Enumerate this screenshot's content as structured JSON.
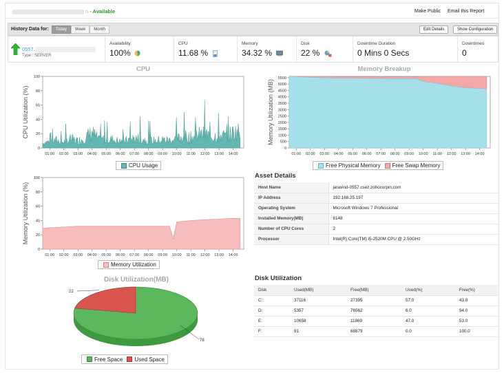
{
  "header": {
    "monitor_suffix": "n",
    "status": " - Available",
    "make_public": "Make Public",
    "email_report": "Email this Report"
  },
  "history": {
    "label": "History Data for:",
    "tabs": [
      "Today",
      "Week",
      "Month"
    ],
    "active_tab": "Today",
    "edit_details": "Edit Details",
    "show_configuration": "Show Configuration"
  },
  "monitor": {
    "name": "0557.",
    "type": "Type : SERVER"
  },
  "summary": {
    "availability": {
      "label": "Availability",
      "value": "100%"
    },
    "cpu": {
      "label": "CPU",
      "value": "11.68 %"
    },
    "memory": {
      "label": "Memory",
      "value": "34.32 %"
    },
    "disk": {
      "label": "Disk",
      "value": "22 %"
    },
    "downtime_duration": {
      "label": "Downtime Duration",
      "value": "0 Mins 0 Secs"
    },
    "downtimes": {
      "label": "Downtimes",
      "value": "0"
    }
  },
  "colors": {
    "cpu_area": "#62b8b0",
    "memory_util_area": "#f7bcbc",
    "free_physical": "#a5e0ea",
    "free_swap": "#f3a7a7",
    "free_space": "#5cb85c",
    "used_space": "#d9534f",
    "available_green": "#2c9a2c"
  },
  "cpu_chart": {
    "title": "CPU",
    "ylabel": "CPU Utilization (%)",
    "ylim": [
      0,
      100
    ],
    "yticks": [
      0,
      20,
      40,
      60,
      80,
      100
    ],
    "xticks": [
      "01:00",
      "02:00",
      "03:00",
      "04:00",
      "05:00",
      "06:00",
      "07:00",
      "08:00",
      "09:00",
      "10:00",
      "11:00",
      "12:00",
      "13:00",
      "14:00"
    ],
    "legend": "CPU Usage"
  },
  "memory_breakup_chart": {
    "title": "Memory Breakup",
    "ylabel": "Memory Utilization (MB)",
    "ylim": [
      0,
      5600
    ],
    "yticks": [
      0,
      500,
      1000,
      1500,
      2000,
      2500,
      3000,
      3500,
      4000,
      4500,
      5000,
      5500
    ],
    "xticks": [
      "01:00",
      "02:00",
      "03:00",
      "04:00",
      "05:00",
      "06:00",
      "07:00",
      "08:00",
      "09:00",
      "10:00",
      "11:00",
      "12:00",
      "13:00",
      "14:00"
    ],
    "legend_free_physical": "Free Physical Memory",
    "legend_free_swap": "Free Swap Memory"
  },
  "memory_chart": {
    "ylabel": "Memory Utilization (%)",
    "ylim": [
      0,
      100
    ],
    "yticks": [
      0,
      20,
      40,
      60,
      80,
      100
    ],
    "xticks": [
      "01:00",
      "02:00",
      "03:00",
      "04:00",
      "05:00",
      "06:00",
      "07:00",
      "08:00",
      "09:00",
      "10:00",
      "11:00",
      "12:00",
      "13:00",
      "14:00"
    ],
    "legend": "Memory Utilization"
  },
  "disk_chart": {
    "title": "Disk Utilization(MB)",
    "legend_free": "Free Space",
    "legend_used": "Used Space",
    "label_used": "22",
    "label_free": "78"
  },
  "chart_data": [
    {
      "type": "area",
      "title": "CPU",
      "ylabel": "CPU Utilization (%)",
      "ylim": [
        0,
        100
      ],
      "x": [
        "00:30",
        "01:00",
        "01:30",
        "02:00",
        "02:30",
        "03:00",
        "03:30",
        "04:00",
        "04:30",
        "05:00",
        "05:30",
        "06:00",
        "06:30",
        "07:00",
        "07:30",
        "08:00",
        "08:30",
        "09:00",
        "09:30",
        "10:00",
        "10:30",
        "11:00",
        "11:30",
        "12:00",
        "12:30",
        "13:00",
        "13:30",
        "14:00",
        "14:30"
      ],
      "series": [
        {
          "name": "CPU Usage",
          "values": [
            8,
            10,
            12,
            9,
            14,
            11,
            16,
            24,
            12,
            14,
            13,
            10,
            12,
            15,
            14,
            12,
            11,
            13,
            12,
            14,
            18,
            16,
            20,
            22,
            17,
            20,
            18,
            24,
            26
          ]
        }
      ]
    },
    {
      "type": "area",
      "title": "Memory Breakup",
      "ylabel": "Memory Utilization (MB)",
      "ylim": [
        0,
        5600
      ],
      "x": [
        "00:30",
        "01:00",
        "02:00",
        "03:00",
        "04:00",
        "05:00",
        "06:00",
        "07:00",
        "08:00",
        "09:00",
        "09:30",
        "10:00",
        "11:00",
        "12:00",
        "13:00",
        "14:00",
        "14:30"
      ],
      "series": [
        {
          "name": "Free Physical Memory",
          "values": [
            5650,
            5580,
            5520,
            5480,
            5460,
            5450,
            5440,
            5430,
            5420,
            5420,
            5410,
            5200,
            5050,
            4850,
            4700,
            4650,
            4600
          ]
        },
        {
          "name": "Free Swap Memory",
          "values": [
            10,
            80,
            100,
            110,
            110,
            120,
            130,
            130,
            140,
            140,
            150,
            400,
            550,
            750,
            900,
            950,
            1000
          ]
        }
      ]
    },
    {
      "type": "area",
      "ylabel": "Memory Utilization (%)",
      "ylim": [
        0,
        100
      ],
      "x": [
        "00:30",
        "01:00",
        "02:00",
        "03:00",
        "04:00",
        "05:00",
        "06:00",
        "07:00",
        "08:00",
        "09:00",
        "09:30",
        "09:45",
        "10:00",
        "11:00",
        "12:00",
        "13:00",
        "14:00",
        "14:30"
      ],
      "series": [
        {
          "name": "Memory Utilization",
          "values": [
            29,
            30,
            31,
            32,
            32,
            32,
            32,
            32,
            32,
            32,
            32,
            14,
            38,
            40,
            41,
            42,
            43,
            43
          ]
        }
      ]
    },
    {
      "type": "pie",
      "title": "Disk Utilization(MB)",
      "categories": [
        "Free Space",
        "Used Space"
      ],
      "values": [
        78,
        22
      ]
    }
  ],
  "asset": {
    "title": "Asset Details",
    "rows": [
      {
        "key": "Host Name",
        "value": "jaravind-0557.csez.zohocorpin.com"
      },
      {
        "key": "IP Address",
        "value": "192.168.25.197"
      },
      {
        "key": "Operating System",
        "value": "Microsoft Windows 7 Professional"
      },
      {
        "key": "Installed Memory(MB)",
        "value": "8148"
      },
      {
        "key": "Number of CPU Cores",
        "value": "2"
      },
      {
        "key": "Processor",
        "value": "Intel(R) Core(TM) i5-2520M CPU @ 2.50GHz"
      }
    ]
  },
  "disk_table": {
    "title": "Disk Utilization",
    "headers": [
      "Disk",
      "Used(MB)",
      "Free(MB)",
      "Used(%)",
      "Free(%)"
    ],
    "rows": [
      [
        "C:",
        "37116",
        "27395",
        "57.0",
        "43.0"
      ],
      [
        "D:",
        "5357",
        "76562",
        "6.0",
        "94.0"
      ],
      [
        "E:",
        "10658",
        "11869",
        "47.0",
        "53.0"
      ],
      [
        "F:",
        "91",
        "68879",
        "0.0",
        "100.0"
      ]
    ]
  }
}
